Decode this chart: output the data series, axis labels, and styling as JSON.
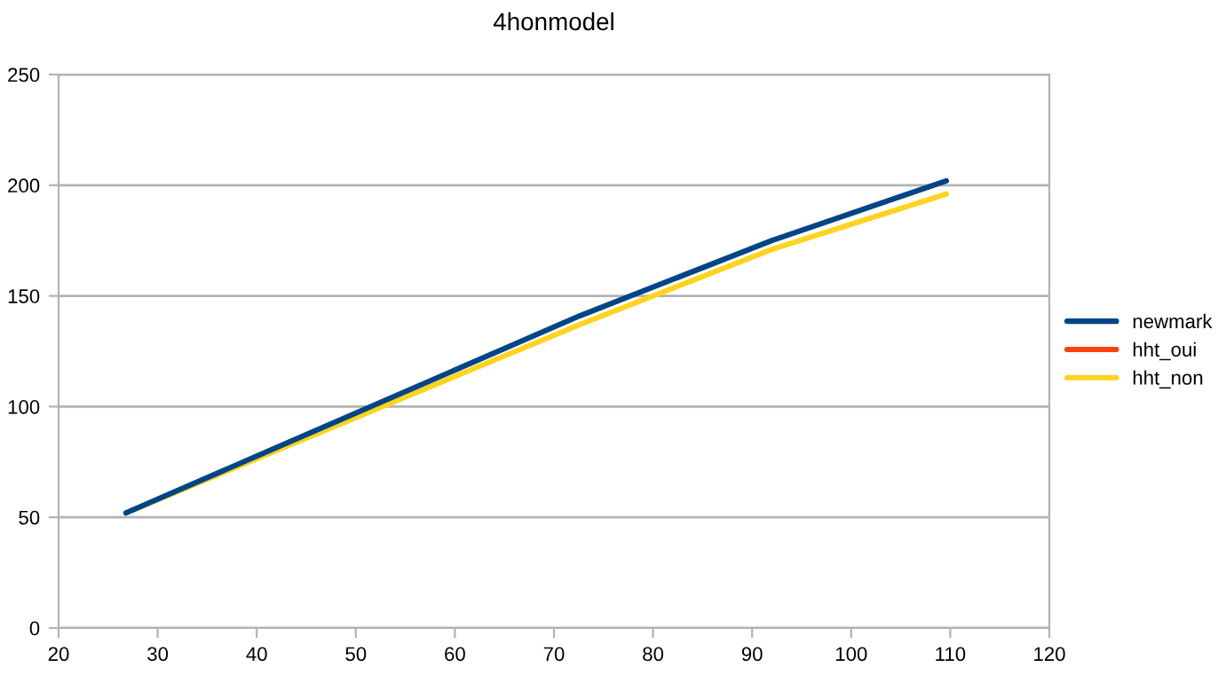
{
  "chart_data": {
    "type": "line",
    "title": "4honmodel",
    "x": [
      26.8,
      72.6,
      92.0,
      109.6
    ],
    "series": [
      {
        "name": "newmark",
        "color": "#004586",
        "values": [
          52,
          141,
          175,
          202
        ]
      },
      {
        "name": "hht_oui",
        "color": "#ff420e",
        "values": [
          null,
          null,
          null,
          null
        ]
      },
      {
        "name": "hht_non",
        "color": "#ffd320",
        "values": [
          52,
          137,
          171,
          196
        ]
      }
    ],
    "xlim": [
      20,
      120
    ],
    "xticks": [
      20,
      30,
      40,
      50,
      60,
      70,
      80,
      90,
      100,
      110,
      120
    ],
    "ylim": [
      0,
      250
    ],
    "yticks": [
      0,
      50,
      100,
      150,
      200,
      250
    ],
    "grid": "y",
    "legend": "right",
    "marker": "none",
    "line_style": "solid"
  }
}
